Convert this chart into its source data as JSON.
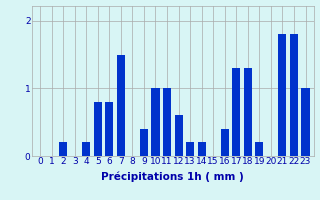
{
  "values": [
    0,
    0,
    0.2,
    0,
    0.2,
    0.8,
    0.8,
    1.5,
    0,
    0.4,
    1.0,
    1.0,
    0.6,
    0.2,
    0.2,
    0,
    0.4,
    1.3,
    1.3,
    0.2,
    0,
    1.8,
    1.8,
    1.0
  ],
  "bar_color": "#0033cc",
  "background_color": "#d8f5f5",
  "grid_color": "#aaaaaa",
  "text_color": "#0000aa",
  "xlabel": "Précipitations 1h ( mm )",
  "ylim": [
    0,
    2.22
  ],
  "yticks": [
    0,
    1,
    2
  ],
  "xlabel_fontsize": 7.5,
  "tick_fontsize": 6.5,
  "bar_width": 0.7
}
